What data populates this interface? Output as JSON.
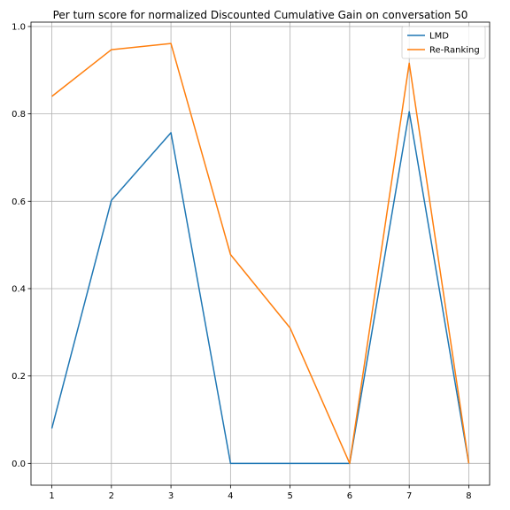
{
  "chart_data": {
    "type": "line",
    "title": "Per turn score for normalized Discounted Cumulative Gain on conversation 50",
    "xlabel": "",
    "ylabel": "",
    "x": [
      1,
      2,
      3,
      4,
      5,
      6,
      7,
      8
    ],
    "xlim": [
      0.65,
      8.35
    ],
    "ylim": [
      -0.05,
      1.01
    ],
    "xticks": [
      1,
      2,
      3,
      4,
      5,
      6,
      7,
      8
    ],
    "yticks": [
      0.0,
      0.2,
      0.4,
      0.6,
      0.8,
      1.0
    ],
    "ytick_labels": [
      "0.0",
      "0.2",
      "0.4",
      "0.6",
      "0.8",
      "1.0"
    ],
    "grid": true,
    "legend_position": "top-right",
    "series": [
      {
        "name": "LMD",
        "color": "#1f77b4",
        "values": [
          0.08,
          0.602,
          0.757,
          0.0,
          0.0,
          0.0,
          0.805,
          0.0
        ]
      },
      {
        "name": "Re-Ranking",
        "color": "#ff7f0e",
        "values": [
          0.84,
          0.947,
          0.961,
          0.478,
          0.31,
          0.0,
          0.916,
          0.0
        ]
      }
    ]
  }
}
